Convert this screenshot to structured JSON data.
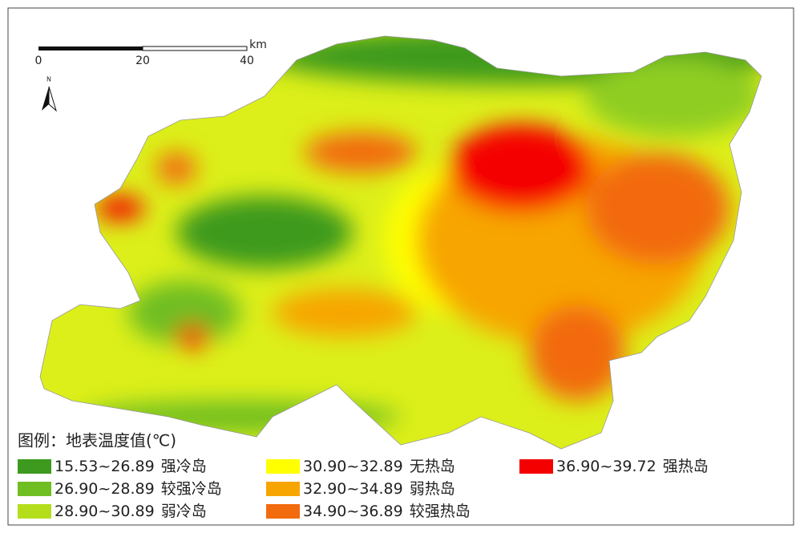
{
  "scale_bar": {
    "ticks": [
      0,
      20,
      40
    ],
    "unit": "km"
  },
  "north_arrow": {
    "label": "N"
  },
  "legend": {
    "title": "图例：地表温度值(℃)",
    "items": [
      {
        "range": "15.53~26.89",
        "label": "强冷岛",
        "color": "#3d9a1f"
      },
      {
        "range": "26.90~28.89",
        "label": "较强冷岛",
        "color": "#6fbe22"
      },
      {
        "range": "28.90~30.89",
        "label": "弱冷岛",
        "color": "#b4de1c"
      },
      {
        "range": "30.90~32.89",
        "label": "无热岛",
        "color": "#ffff00"
      },
      {
        "range": "32.90~34.89",
        "label": "弱热岛",
        "color": "#f7a500"
      },
      {
        "range": "34.90~36.89",
        "label": "较强热岛",
        "color": "#f26b0c"
      },
      {
        "range": "36.90~39.72",
        "label": "强热岛",
        "color": "#f50000"
      }
    ]
  }
}
